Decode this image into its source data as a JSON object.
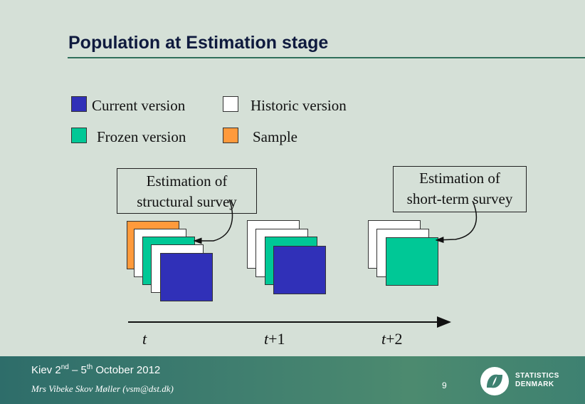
{
  "title": "Population at Estimation stage",
  "legend": [
    {
      "label": "Current version",
      "color": "#3030b8"
    },
    {
      "label": "Historic version",
      "color": "#ffffff"
    },
    {
      "label": "Frozen version",
      "color": "#00c896"
    },
    {
      "label": "Sample",
      "color": "#ff9a3c"
    }
  ],
  "boxes": {
    "structural": {
      "line1": "Estimation of",
      "line2": "structural survey"
    },
    "shortterm": {
      "line1": "Estimation of",
      "line2": "short-term survey"
    }
  },
  "timeline": {
    "t0": "t",
    "t1_var": "t",
    "t1_suffix": "+1",
    "t2_var": "t",
    "t2_suffix": "+2"
  },
  "footer": {
    "event_a": "Kiev 2",
    "event_sup1": "nd",
    "event_b": " – 5",
    "event_sup2": "th",
    "event_c": " October 2012",
    "author": "Mrs Vibeke Skov Møller (vsm@dst.dk)",
    "page": "9",
    "logo_line1": "STATISTICS",
    "logo_line2": "DENMARK"
  }
}
